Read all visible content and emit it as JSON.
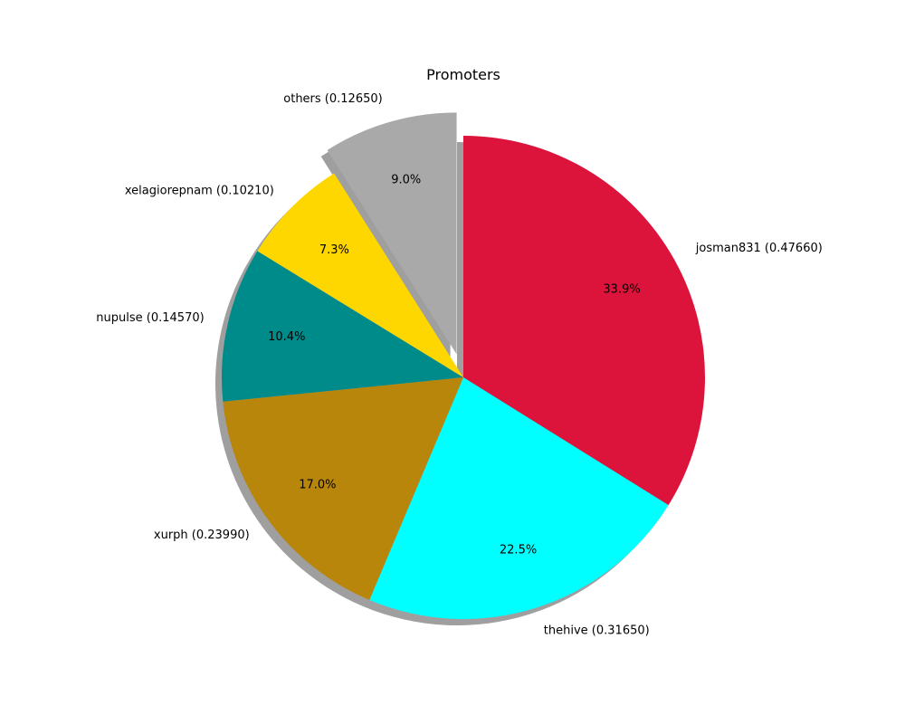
{
  "chart_data": {
    "type": "pie",
    "title": "Promoters",
    "start_angle_deg": 90,
    "direction": "clockwise",
    "shadow": true,
    "slices": [
      {
        "label": "josman831 (0.47660)",
        "value": 0.4766,
        "pct_label": "33.9%",
        "color": "#dc143c",
        "explode": false
      },
      {
        "label": "thehive (0.31650)",
        "value": 0.3165,
        "pct_label": "22.5%",
        "color": "#00ffff",
        "explode": false
      },
      {
        "label": "xurph (0.23990)",
        "value": 0.2399,
        "pct_label": "17.0%",
        "color": "#b8860b",
        "explode": false
      },
      {
        "label": "nupulse (0.14570)",
        "value": 0.1457,
        "pct_label": "10.4%",
        "color": "#008b8b",
        "explode": false
      },
      {
        "label": "xelagiorepnam (0.10210)",
        "value": 0.1021,
        "pct_label": "7.3%",
        "color": "#ffd700",
        "explode": false
      },
      {
        "label": "others (0.12650)",
        "value": 0.1265,
        "pct_label": "9.0%",
        "color": "#a9a9a9",
        "explode": true
      }
    ]
  }
}
